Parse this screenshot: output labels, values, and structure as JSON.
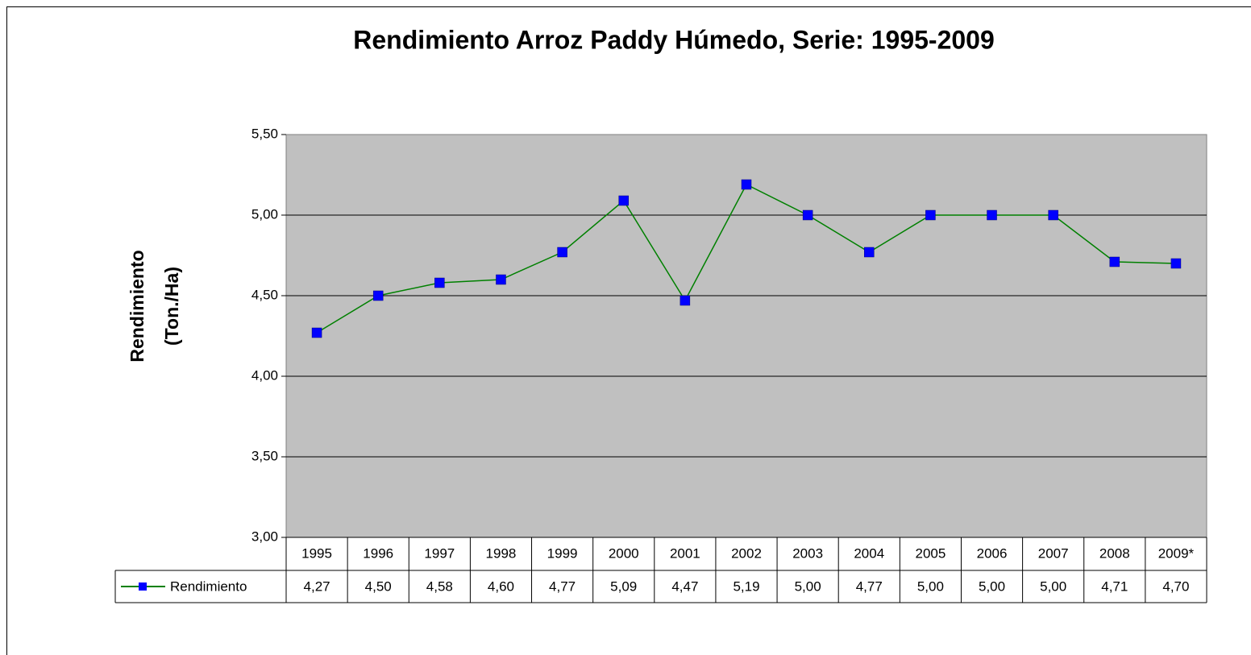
{
  "chart_data": {
    "type": "line",
    "title": "Rendimiento Arroz Paddy Húmedo, Serie: 1995-2009",
    "y_label": [
      "Rendimiento",
      "(Ton./Ha)"
    ],
    "categories": [
      "1995",
      "1996",
      "1997",
      "1998",
      "1999",
      "2000",
      "2001",
      "2002",
      "2003",
      "2004",
      "2005",
      "2006",
      "2007",
      "2008",
      "2009*"
    ],
    "series": [
      {
        "name": "Rendimiento",
        "color": "#008000",
        "marker_color": "#0000ff",
        "values": [
          4.27,
          4.5,
          4.58,
          4.6,
          4.77,
          5.09,
          4.47,
          5.19,
          5.0,
          4.77,
          5.0,
          5.0,
          5.0,
          4.71,
          4.7
        ],
        "value_labels": [
          "4,27",
          "4,50",
          "4,58",
          "4,60",
          "4,77",
          "5,09",
          "4,47",
          "5,19",
          "5,00",
          "4,77",
          "5,00",
          "5,00",
          "5,00",
          "4,71",
          "4,70"
        ]
      }
    ],
    "ylim": [
      3,
      5.5
    ],
    "yticks": [
      {
        "value": 3,
        "label": "3,00"
      },
      {
        "value": 3.5,
        "label": "3,50"
      },
      {
        "value": 4,
        "label": "4,00"
      },
      {
        "value": 4.5,
        "label": "4,50"
      },
      {
        "value": 5,
        "label": "5,00"
      },
      {
        "value": 5.5,
        "label": "5,50"
      }
    ],
    "grid": true,
    "plot_background": "#c0c0c0"
  }
}
